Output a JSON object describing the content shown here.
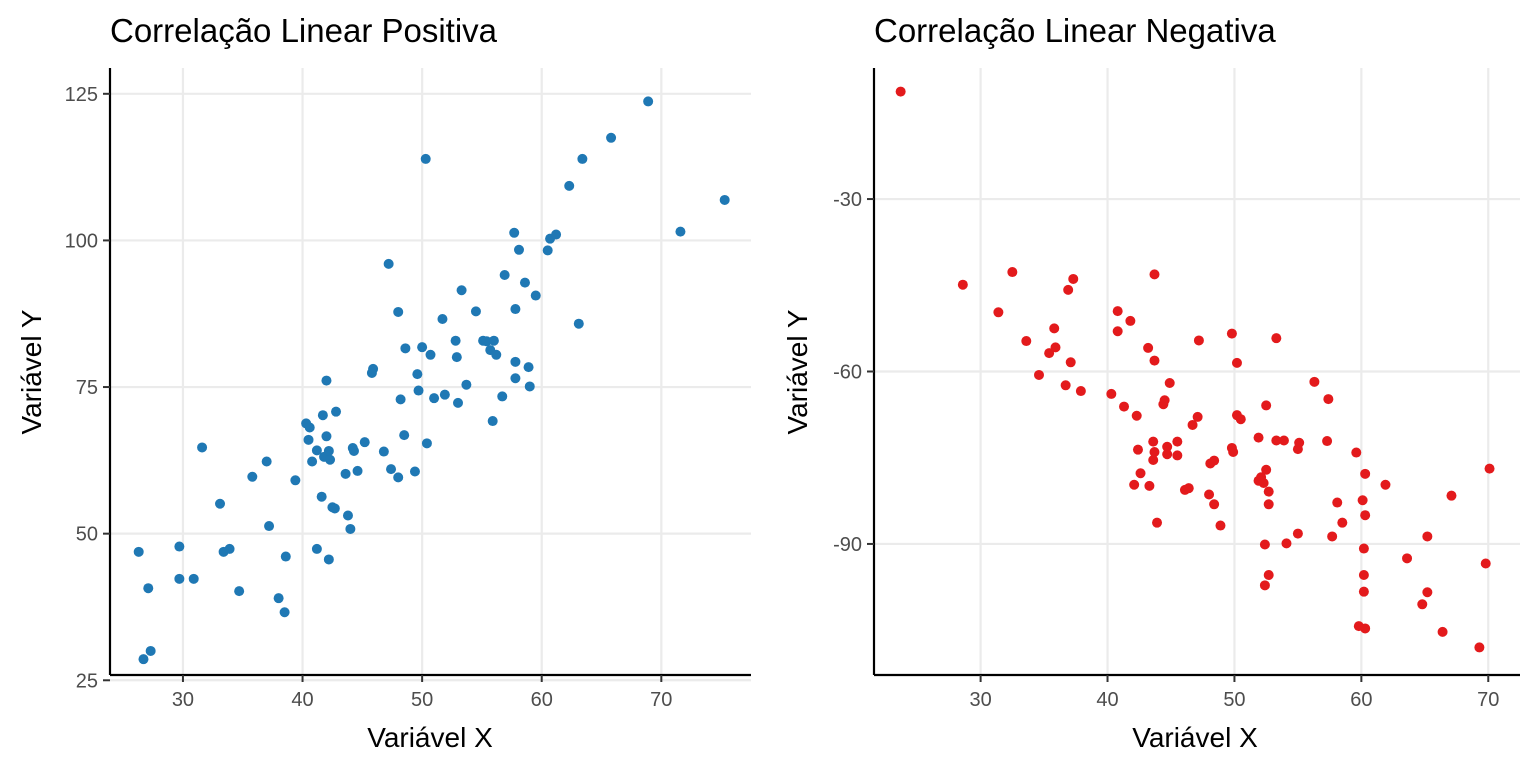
{
  "chart_data": [
    {
      "type": "scatter",
      "title": "Correlação Linear Positiva",
      "xlabel": "Variável X",
      "ylabel": "Variável Y",
      "xlim": [
        23.9,
        77.5
      ],
      "ylim": [
        25.9,
        129.4
      ],
      "x_ticks": [
        30,
        40,
        50,
        60,
        70
      ],
      "y_ticks": [
        25,
        50,
        75,
        100,
        125
      ],
      "grid": true,
      "series": [
        {
          "color": "#1F78B4",
          "points": [
            [
              26.3,
              46.9
            ],
            [
              26.7,
              28.6
            ],
            [
              27.1,
              40.7
            ],
            [
              27.3,
              30.0
            ],
            [
              29.7,
              47.8
            ],
            [
              29.7,
              42.3
            ],
            [
              30.9,
              42.3
            ],
            [
              31.6,
              64.7
            ],
            [
              33.1,
              55.1
            ],
            [
              33.4,
              46.9
            ],
            [
              33.9,
              47.4
            ],
            [
              34.7,
              40.2
            ],
            [
              35.8,
              59.7
            ],
            [
              37.0,
              62.3
            ],
            [
              37.2,
              51.3
            ],
            [
              38.0,
              39.0
            ],
            [
              38.5,
              36.6
            ],
            [
              38.6,
              46.1
            ],
            [
              39.4,
              59.1
            ],
            [
              40.3,
              68.8
            ],
            [
              40.5,
              66.0
            ],
            [
              40.6,
              68.1
            ],
            [
              40.8,
              62.3
            ],
            [
              41.2,
              64.2
            ],
            [
              41.2,
              47.4
            ],
            [
              41.6,
              56.3
            ],
            [
              41.7,
              70.2
            ],
            [
              41.8,
              63.1
            ],
            [
              42.0,
              76.1
            ],
            [
              42.0,
              66.6
            ],
            [
              42.2,
              45.6
            ],
            [
              42.2,
              64.1
            ],
            [
              42.3,
              62.6
            ],
            [
              42.5,
              54.5
            ],
            [
              42.7,
              54.3
            ],
            [
              42.8,
              70.8
            ],
            [
              43.6,
              60.2
            ],
            [
              43.8,
              53.1
            ],
            [
              44.0,
              50.8
            ],
            [
              44.2,
              64.6
            ],
            [
              44.3,
              64.1
            ],
            [
              44.6,
              60.7
            ],
            [
              45.2,
              65.6
            ],
            [
              45.8,
              77.4
            ],
            [
              45.9,
              78.1
            ],
            [
              46.8,
              64.0
            ],
            [
              47.2,
              96.0
            ],
            [
              47.4,
              61.0
            ],
            [
              48.0,
              87.8
            ],
            [
              48.0,
              59.6
            ],
            [
              48.2,
              72.9
            ],
            [
              48.5,
              66.8
            ],
            [
              48.6,
              81.6
            ],
            [
              49.4,
              60.6
            ],
            [
              49.6,
              77.2
            ],
            [
              49.7,
              74.4
            ],
            [
              50.0,
              81.8
            ],
            [
              50.4,
              65.4
            ],
            [
              50.3,
              113.9
            ],
            [
              50.7,
              80.5
            ],
            [
              51.0,
              73.1
            ],
            [
              51.7,
              86.6
            ],
            [
              51.9,
              73.7
            ],
            [
              52.8,
              82.9
            ],
            [
              52.9,
              80.1
            ],
            [
              53.0,
              72.3
            ],
            [
              53.3,
              91.5
            ],
            [
              53.7,
              75.4
            ],
            [
              54.5,
              87.9
            ],
            [
              55.1,
              82.9
            ],
            [
              55.4,
              82.8
            ],
            [
              55.7,
              81.3
            ],
            [
              55.9,
              69.2
            ],
            [
              56.0,
              82.9
            ],
            [
              56.2,
              80.5
            ],
            [
              56.7,
              73.4
            ],
            [
              56.9,
              94.1
            ],
            [
              57.7,
              101.3
            ],
            [
              57.8,
              88.3
            ],
            [
              57.8,
              76.5
            ],
            [
              57.8,
              79.3
            ],
            [
              58.1,
              98.4
            ],
            [
              58.6,
              92.8
            ],
            [
              58.9,
              78.4
            ],
            [
              59.0,
              75.1
            ],
            [
              59.5,
              90.6
            ],
            [
              60.5,
              98.3
            ],
            [
              60.7,
              100.3
            ],
            [
              61.2,
              101.0
            ],
            [
              62.3,
              109.3
            ],
            [
              63.1,
              85.8
            ],
            [
              63.4,
              113.9
            ],
            [
              65.8,
              117.5
            ],
            [
              68.9,
              123.7
            ],
            [
              71.6,
              101.5
            ],
            [
              75.3,
              106.9
            ]
          ]
        }
      ]
    },
    {
      "type": "scatter",
      "title": "Correlação Linear Negativa",
      "xlabel": "Variável X",
      "ylabel": "Variável Y",
      "xlim": [
        21.6,
        72.5
      ],
      "ylim": [
        -112.8,
        -7.2
      ],
      "x_ticks": [
        30,
        40,
        50,
        60,
        70
      ],
      "y_ticks": [
        -30,
        -60,
        -90
      ],
      "grid": true,
      "series": [
        {
          "color": "#E31A1C",
          "points": [
            [
              23.7,
              -11.3
            ],
            [
              28.6,
              -44.9
            ],
            [
              31.4,
              -49.7
            ],
            [
              32.5,
              -42.7
            ],
            [
              33.6,
              -54.7
            ],
            [
              34.6,
              -60.6
            ],
            [
              35.4,
              -56.8
            ],
            [
              35.8,
              -52.5
            ],
            [
              35.9,
              -55.8
            ],
            [
              36.7,
              -62.4
            ],
            [
              36.9,
              -45.8
            ],
            [
              37.1,
              -58.4
            ],
            [
              37.3,
              -43.9
            ],
            [
              37.9,
              -63.4
            ],
            [
              40.3,
              -63.9
            ],
            [
              40.8,
              -49.5
            ],
            [
              40.8,
              -53.0
            ],
            [
              41.3,
              -66.1
            ],
            [
              41.8,
              -51.2
            ],
            [
              42.1,
              -79.7
            ],
            [
              42.3,
              -67.7
            ],
            [
              42.4,
              -73.6
            ],
            [
              42.6,
              -77.7
            ],
            [
              43.2,
              -55.9
            ],
            [
              43.3,
              -79.9
            ],
            [
              43.6,
              -75.4
            ],
            [
              43.6,
              -72.2
            ],
            [
              43.7,
              -74.0
            ],
            [
              43.7,
              -58.1
            ],
            [
              43.7,
              -43.1
            ],
            [
              43.9,
              -86.3
            ],
            [
              44.4,
              -65.7
            ],
            [
              44.5,
              -65.0
            ],
            [
              44.7,
              -74.4
            ],
            [
              44.7,
              -73.1
            ],
            [
              44.9,
              -62.0
            ],
            [
              45.5,
              -72.2
            ],
            [
              45.5,
              -74.6
            ],
            [
              46.1,
              -80.6
            ],
            [
              46.4,
              -80.3
            ],
            [
              46.7,
              -69.3
            ],
            [
              47.1,
              -67.9
            ],
            [
              47.2,
              -54.6
            ],
            [
              48.0,
              -81.4
            ],
            [
              48.1,
              -76.0
            ],
            [
              48.4,
              -83.1
            ],
            [
              48.4,
              -75.5
            ],
            [
              48.9,
              -86.8
            ],
            [
              49.8,
              -73.3
            ],
            [
              49.8,
              -53.4
            ],
            [
              49.9,
              -74.0
            ],
            [
              50.2,
              -67.6
            ],
            [
              50.2,
              -58.5
            ],
            [
              50.5,
              -68.3
            ],
            [
              51.9,
              -71.5
            ],
            [
              51.9,
              -79.0
            ],
            [
              52.1,
              -78.4
            ],
            [
              52.3,
              -79.4
            ],
            [
              52.4,
              -90.1
            ],
            [
              52.4,
              -97.2
            ],
            [
              52.5,
              -77.1
            ],
            [
              52.5,
              -65.9
            ],
            [
              52.7,
              -95.4
            ],
            [
              52.7,
              -80.9
            ],
            [
              52.7,
              -83.1
            ],
            [
              53.3,
              -72.0
            ],
            [
              53.3,
              -54.2
            ],
            [
              53.9,
              -72.0
            ],
            [
              54.1,
              -89.9
            ],
            [
              55.0,
              -73.5
            ],
            [
              55.0,
              -88.2
            ],
            [
              55.1,
              -72.4
            ],
            [
              56.3,
              -61.8
            ],
            [
              57.3,
              -72.1
            ],
            [
              57.4,
              -64.8
            ],
            [
              57.7,
              -88.7
            ],
            [
              58.1,
              -82.8
            ],
            [
              58.5,
              -86.3
            ],
            [
              59.6,
              -74.1
            ],
            [
              59.8,
              -104.3
            ],
            [
              60.1,
              -82.4
            ],
            [
              60.2,
              -95.4
            ],
            [
              60.2,
              -90.8
            ],
            [
              60.2,
              -98.3
            ],
            [
              60.3,
              -77.8
            ],
            [
              60.3,
              -85.0
            ],
            [
              60.3,
              -104.7
            ],
            [
              61.9,
              -79.7
            ],
            [
              63.6,
              -92.5
            ],
            [
              64.8,
              -100.5
            ],
            [
              65.2,
              -88.7
            ],
            [
              65.2,
              -98.4
            ],
            [
              66.4,
              -105.3
            ],
            [
              67.1,
              -81.6
            ],
            [
              69.3,
              -108.0
            ],
            [
              69.8,
              -93.4
            ],
            [
              70.1,
              -76.9
            ]
          ]
        }
      ]
    }
  ]
}
